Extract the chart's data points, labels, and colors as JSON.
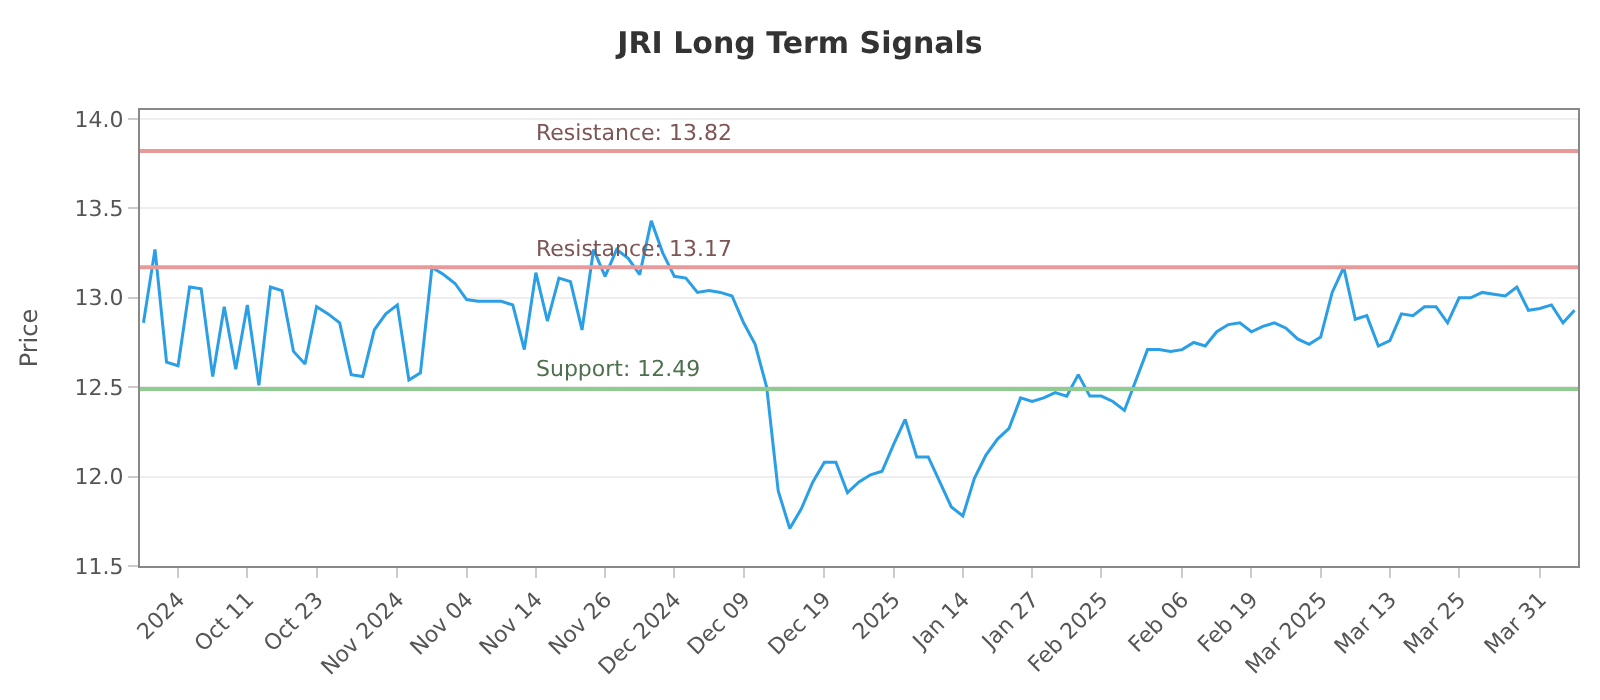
{
  "chart_data": {
    "type": "line",
    "title": "JRI Long Term Signals",
    "ylabel": "Price",
    "categories": [
      null,
      null,
      null,
      "2024",
      null,
      null,
      null,
      null,
      null,
      "Oct 11",
      null,
      null,
      null,
      null,
      null,
      "Oct 23",
      null,
      null,
      null,
      null,
      null,
      null,
      "Nov 2024",
      null,
      null,
      null,
      null,
      null,
      "Nov 04",
      null,
      null,
      null,
      null,
      null,
      "Nov 14",
      null,
      null,
      null,
      null,
      null,
      "Nov 26",
      null,
      null,
      null,
      null,
      null,
      "Dec 2024",
      null,
      null,
      null,
      null,
      null,
      "Dec 09",
      null,
      null,
      null,
      null,
      null,
      null,
      "Dec 19",
      null,
      null,
      null,
      null,
      null,
      "2025",
      null,
      null,
      null,
      null,
      null,
      "Jan 14",
      null,
      null,
      null,
      null,
      null,
      "Jan 27",
      null,
      null,
      null,
      null,
      null,
      "Feb 2025",
      null,
      null,
      null,
      null,
      null,
      null,
      "Feb 06",
      null,
      null,
      null,
      null,
      null,
      "Feb 19",
      null,
      null,
      null,
      null,
      null,
      "Mar 2025",
      null,
      null,
      null,
      null,
      null,
      "Mar 13",
      null,
      null,
      null,
      null,
      null,
      "Mar 25",
      null,
      null,
      null,
      null,
      null,
      null,
      "Mar 31",
      null,
      null,
      null
    ],
    "series": [
      {
        "color": "#2b9fe6",
        "values": [
          12.86,
          13.27,
          12.64,
          12.62,
          13.06,
          13.05,
          12.56,
          12.95,
          12.6,
          12.96,
          12.51,
          13.06,
          13.04,
          12.7,
          12.63,
          12.95,
          12.91,
          12.86,
          12.57,
          12.56,
          12.82,
          12.91,
          12.96,
          12.54,
          12.58,
          13.17,
          13.13,
          13.08,
          12.99,
          12.98,
          12.98,
          12.98,
          12.96,
          12.71,
          13.14,
          12.87,
          13.11,
          13.09,
          12.82,
          13.27,
          13.12,
          13.27,
          13.22,
          13.13,
          13.43,
          13.25,
          13.12,
          13.11,
          13.03,
          13.04,
          13.03,
          13.01,
          12.86,
          12.74,
          12.5,
          11.92,
          11.71,
          11.82,
          11.97,
          12.08,
          12.08,
          11.91,
          11.97,
          12.01,
          12.03,
          12.18,
          12.32,
          12.11,
          12.11,
          11.97,
          11.83,
          11.78,
          11.99,
          12.12,
          12.21,
          12.27,
          12.44,
          12.42,
          12.44,
          12.47,
          12.45,
          12.57,
          12.45,
          12.45,
          12.42,
          12.37,
          12.54,
          12.71,
          12.71,
          12.7,
          12.71,
          12.75,
          12.73,
          12.81,
          12.85,
          12.86,
          12.81,
          12.84,
          12.86,
          12.83,
          12.77,
          12.74,
          12.78,
          13.03,
          13.17,
          12.88,
          12.9,
          12.73,
          12.76,
          12.91,
          12.9,
          12.95,
          12.95,
          12.86,
          13.0,
          13.0,
          13.03,
          13.02,
          13.01,
          13.06,
          12.93,
          12.94,
          12.96,
          12.86,
          12.93
        ]
      }
    ],
    "ylim": [
      11.5,
      14.05
    ],
    "yticks": [
      {
        "value": 11.5,
        "label": "11.5"
      },
      {
        "value": 12.0,
        "label": "12.0"
      },
      {
        "value": 12.5,
        "label": "12.5"
      },
      {
        "value": 13.0,
        "label": "13.0"
      },
      {
        "value": 13.5,
        "label": "13.5"
      },
      {
        "value": 14.0,
        "label": "14.0"
      }
    ],
    "grid": "y",
    "marker": "none",
    "line_style": "solid",
    "ref_lines": [
      {
        "axis": "y",
        "value": 13.82,
        "label": "Resistance: 13.82",
        "color": "#e89a9a"
      },
      {
        "axis": "y",
        "value": 13.17,
        "label": "Resistance: 13.17",
        "color": "#e89a9a"
      },
      {
        "axis": "y",
        "value": 12.49,
        "label": "Support: 12.49",
        "color": "#8fcc8f"
      }
    ]
  }
}
